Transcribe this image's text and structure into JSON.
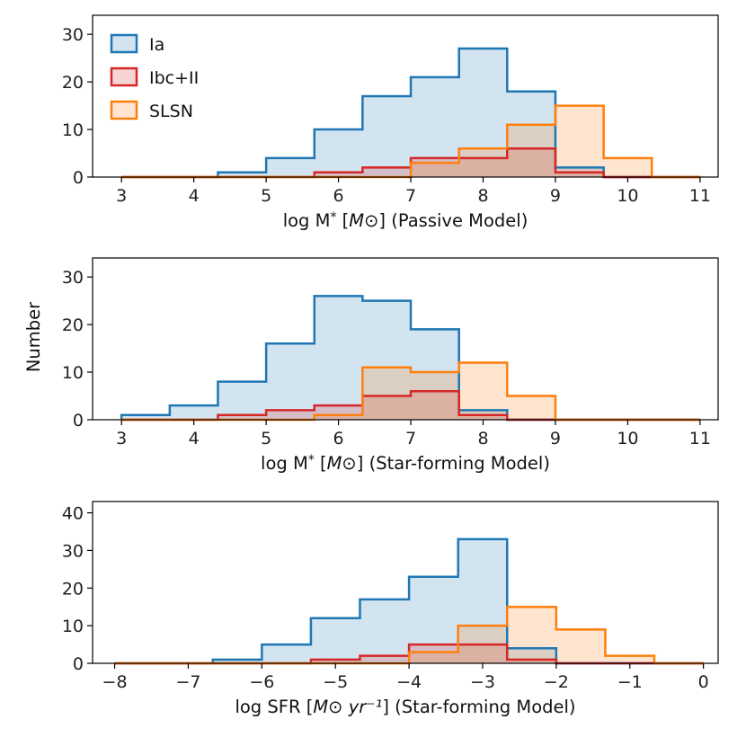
{
  "figure": {
    "ylabel": "Number"
  },
  "legend": {
    "placement": "upper-left",
    "entries": [
      {
        "name": "Ia",
        "color": "#1f77b4"
      },
      {
        "name": "Ibc+II",
        "color": "#d62728"
      },
      {
        "name": "SLSN",
        "color": "#ff7f0e"
      }
    ]
  },
  "chart_data": [
    {
      "type": "histogram",
      "xlabel": "log M* [M⊙] (Passive Model)",
      "xlim": [
        2.6,
        11.25
      ],
      "ylim": [
        0,
        34
      ],
      "xticks": [
        3,
        4,
        5,
        6,
        7,
        8,
        9,
        10,
        11
      ],
      "xtick_labels": [
        "3",
        "4",
        "5",
        "6",
        "7",
        "8",
        "9",
        "10",
        "11"
      ],
      "yticks": [
        0,
        10,
        20,
        30
      ],
      "ytick_labels": [
        "0",
        "10",
        "20",
        "30"
      ],
      "bin_edges": [
        3,
        3.667,
        4.333,
        5,
        5.667,
        6.333,
        7,
        7.667,
        8.333,
        9,
        9.667,
        10.333,
        11
      ],
      "series": [
        {
          "name": "Ia",
          "color": "#1f77b4",
          "values": [
            0,
            0,
            1,
            4,
            10,
            17,
            21,
            27,
            18,
            2,
            0,
            0
          ]
        },
        {
          "name": "Ibc+II",
          "color": "#d62728",
          "values": [
            0,
            0,
            0,
            0,
            1,
            2,
            4,
            4,
            6,
            1,
            0,
            0
          ]
        },
        {
          "name": "SLSN",
          "color": "#ff7f0e",
          "values": [
            0,
            0,
            0,
            0,
            0,
            0,
            3,
            6,
            11,
            15,
            4,
            0
          ]
        }
      ]
    },
    {
      "type": "histogram",
      "xlabel": "log M* [M⊙] (Star-forming Model)",
      "xlim": [
        2.6,
        11.25
      ],
      "ylim": [
        0,
        34
      ],
      "xticks": [
        3,
        4,
        5,
        6,
        7,
        8,
        9,
        10,
        11
      ],
      "xtick_labels": [
        "3",
        "4",
        "5",
        "6",
        "7",
        "8",
        "9",
        "10",
        "11"
      ],
      "yticks": [
        0,
        10,
        20,
        30
      ],
      "ytick_labels": [
        "0",
        "10",
        "20",
        "30"
      ],
      "bin_edges": [
        3,
        3.667,
        4.333,
        5,
        5.667,
        6.333,
        7,
        7.667,
        8.333,
        9,
        9.667,
        10.333,
        11
      ],
      "series": [
        {
          "name": "Ia",
          "color": "#1f77b4",
          "values": [
            1,
            3,
            8,
            16,
            26,
            25,
            19,
            2,
            0,
            0,
            0,
            0
          ]
        },
        {
          "name": "Ibc+II",
          "color": "#d62728",
          "values": [
            0,
            0,
            1,
            2,
            3,
            5,
            6,
            1,
            0,
            0,
            0,
            0
          ]
        },
        {
          "name": "SLSN",
          "color": "#ff7f0e",
          "values": [
            0,
            0,
            0,
            0,
            1,
            11,
            10,
            12,
            5,
            0,
            0,
            0
          ]
        }
      ]
    },
    {
      "type": "histogram",
      "xlabel": "log SFR [M⊙ yr⁻¹] (Star-forming Model)",
      "xlim": [
        -8.3,
        0.2
      ],
      "ylim": [
        0,
        43
      ],
      "xticks": [
        -8,
        -7,
        -6,
        -5,
        -4,
        -3,
        -2,
        -1,
        0
      ],
      "xtick_labels": [
        "−8",
        "−7",
        "−6",
        "−5",
        "−4",
        "−3",
        "−2",
        "−1",
        "0"
      ],
      "yticks": [
        0,
        10,
        20,
        30,
        40
      ],
      "ytick_labels": [
        "0",
        "10",
        "20",
        "30",
        "40"
      ],
      "bin_edges": [
        -8,
        -7.333,
        -6.667,
        -6,
        -5.333,
        -4.667,
        -4,
        -3.333,
        -2.667,
        -2,
        -1.333,
        -0.667,
        0
      ],
      "series": [
        {
          "name": "Ia",
          "color": "#1f77b4",
          "values": [
            0,
            0,
            1,
            5,
            12,
            17,
            23,
            33,
            4,
            0,
            0,
            0
          ]
        },
        {
          "name": "Ibc+II",
          "color": "#d62728",
          "values": [
            0,
            0,
            0,
            0,
            1,
            2,
            5,
            5,
            1,
            0,
            0,
            0
          ]
        },
        {
          "name": "SLSN",
          "color": "#ff7f0e",
          "values": [
            0,
            0,
            0,
            0,
            0,
            0,
            3,
            10,
            15,
            9,
            2,
            0
          ]
        }
      ]
    }
  ]
}
